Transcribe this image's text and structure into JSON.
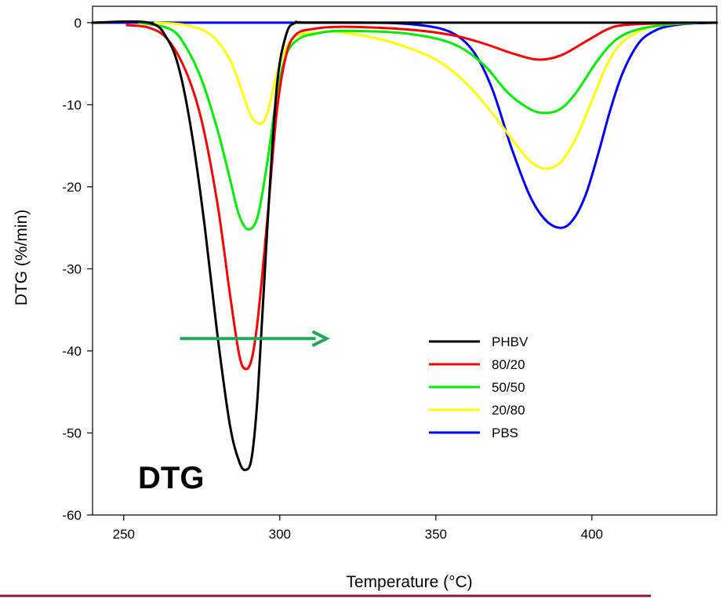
{
  "chart_data": {
    "type": "line",
    "title": "",
    "xlabel": "Temperature (°C)",
    "ylabel": "DTG (%/min)",
    "xlim": [
      240,
      440
    ],
    "ylim": [
      -60,
      2
    ],
    "xticks": [
      250,
      300,
      350,
      400
    ],
    "yticks": [
      0,
      -10,
      -20,
      -30,
      -40,
      -50,
      -60
    ],
    "grid": false,
    "legend_position": "center-right",
    "annotation": "DTG",
    "arrow": {
      "color": "#1faa55",
      "from": [
        268,
        -38.5
      ],
      "to": [
        315,
        -38.5
      ]
    },
    "bottom_rule_color": "#8b1a3a",
    "series": [
      {
        "name": "PHBV",
        "color": "#000000",
        "x": [
          240,
          258,
          264,
          268,
          272,
          276,
          280,
          284,
          287,
          289,
          291,
          293,
          296,
          299,
          302,
          305,
          310,
          350,
          440
        ],
        "y": [
          0,
          0,
          -2,
          -6,
          -14,
          -25,
          -38,
          -49,
          -53.5,
          -54.5,
          -53,
          -45,
          -25,
          -8,
          -1.5,
          0,
          0,
          0,
          0
        ]
      },
      {
        "name": "80/20",
        "color": "#ff0000",
        "x": [
          251,
          258,
          264,
          270,
          275,
          280,
          284,
          287,
          289,
          291,
          293,
          296,
          299,
          302,
          305,
          310,
          320,
          340,
          355,
          365,
          375,
          383,
          390,
          398,
          405,
          410,
          420,
          430
        ],
        "y": [
          -0.3,
          -0.6,
          -2,
          -6,
          -12,
          -22,
          -33,
          -40.5,
          -42.2,
          -41,
          -36,
          -24,
          -11,
          -4,
          -1.5,
          -0.8,
          -0.5,
          -0.8,
          -1.5,
          -2.5,
          -3.8,
          -4.5,
          -4,
          -2.3,
          -0.8,
          -0.3,
          -0.1,
          0
        ]
      },
      {
        "name": "50/50",
        "color": "#00ee00",
        "x": [
          255,
          265,
          270,
          275,
          280,
          284,
          287,
          290,
          293,
          296,
          299,
          302,
          306,
          312,
          320,
          340,
          355,
          365,
          373,
          380,
          385,
          390,
          395,
          402,
          408,
          415,
          425,
          435
        ],
        "y": [
          0,
          -0.8,
          -3,
          -7,
          -13,
          -19,
          -23.5,
          -25.2,
          -23.5,
          -17,
          -9,
          -4,
          -2,
          -1.3,
          -1,
          -1.3,
          -2.5,
          -5,
          -8.5,
          -10.5,
          -11,
          -10.5,
          -8.5,
          -4.5,
          -2,
          -0.8,
          -0.2,
          0
        ]
      },
      {
        "name": "20/80",
        "color": "#ffff00",
        "x": [
          260,
          270,
          278,
          284,
          288,
          291,
          294,
          296,
          298,
          300,
          303,
          306,
          312,
          320,
          335,
          350,
          360,
          368,
          375,
          380,
          385,
          390,
          395,
          400,
          405,
          410,
          418,
          425,
          435
        ],
        "y": [
          0,
          -0.3,
          -1.5,
          -4.5,
          -8.5,
          -11.5,
          -12.3,
          -11,
          -8,
          -5,
          -2.5,
          -1.5,
          -1.2,
          -1.2,
          -2.3,
          -4.5,
          -7.5,
          -11,
          -14.5,
          -16.8,
          -17.8,
          -17,
          -14,
          -9.5,
          -5,
          -2.3,
          -0.6,
          -0.2,
          0
        ]
      },
      {
        "name": "PBS",
        "color": "#0000ff",
        "x": [
          240,
          260,
          300,
          330,
          345,
          355,
          362,
          368,
          374,
          380,
          385,
          390,
          394,
          398,
          402,
          406,
          410,
          415,
          420,
          425,
          432,
          440
        ],
        "y": [
          0,
          0,
          0,
          0,
          -0.3,
          -1.2,
          -3.5,
          -8,
          -15,
          -21,
          -24,
          -25,
          -24,
          -21,
          -16,
          -10.5,
          -6,
          -2.5,
          -1,
          -0.4,
          -0.1,
          0
        ]
      }
    ]
  }
}
